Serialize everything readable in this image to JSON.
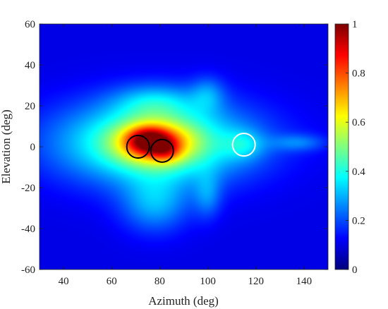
{
  "chart_data": {
    "type": "heatmap",
    "title": "",
    "xlabel": "Azimuth (deg)",
    "ylabel": "Elevation (deg)",
    "xlim": [
      30,
      150
    ],
    "ylim": [
      -60,
      60
    ],
    "xticks": [
      40,
      60,
      80,
      100,
      120,
      140
    ],
    "yticks": [
      -60,
      -40,
      -20,
      0,
      20,
      40,
      60
    ],
    "colorbar": {
      "range": [
        0,
        1
      ],
      "ticks": [
        0,
        0.2,
        0.4,
        0.6,
        0.8,
        1
      ],
      "colormap": "jet"
    },
    "background_level": 0.1,
    "intensity_blobs": [
      {
        "az": 78,
        "el": 2,
        "s_az": 28,
        "s_el": 14,
        "peak": 0.42
      },
      {
        "az": 78,
        "el": 2,
        "s_az": 11,
        "s_el": 7,
        "peak": 0.35
      },
      {
        "az": 75,
        "el": 3,
        "s_az": 6,
        "s_el": 4.5,
        "peak": 0.3
      },
      {
        "az": 83,
        "el": -2,
        "s_az": 4,
        "s_el": 4,
        "peak": 0.15
      },
      {
        "az": 115,
        "el": 1,
        "s_az": 6,
        "s_el": 5,
        "peak": 0.12
      },
      {
        "az": 78,
        "el": -28,
        "s_az": 10,
        "s_el": 10,
        "peak": 0.18
      },
      {
        "az": 78,
        "el": 22,
        "s_az": 12,
        "s_el": 6,
        "peak": 0.15
      },
      {
        "az": 138,
        "el": 2,
        "s_az": 8,
        "s_el": 3,
        "peak": 0.12
      },
      {
        "az": 100,
        "el": -24,
        "s_az": 4,
        "s_el": 8,
        "peak": 0.12
      },
      {
        "az": 100,
        "el": 26,
        "s_az": 5,
        "s_el": 6,
        "peak": 0.12
      }
    ],
    "markers": [
      {
        "az": 71,
        "el": 0,
        "radius_deg": 4.7,
        "color": "#000000"
      },
      {
        "az": 81,
        "el": -2,
        "radius_deg": 4.7,
        "color": "#000000"
      },
      {
        "az": 115,
        "el": 1,
        "radius_deg": 4.7,
        "color": "#ffffff"
      }
    ]
  }
}
